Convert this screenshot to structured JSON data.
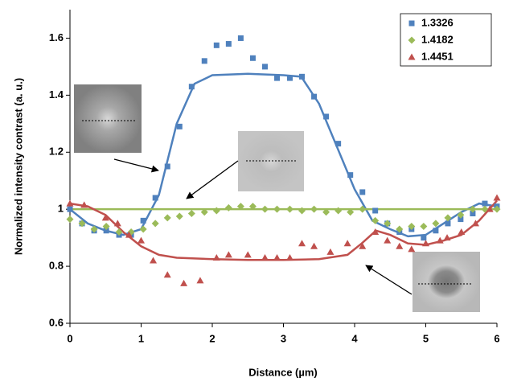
{
  "chart_data": {
    "type": "scatter",
    "x_label": "Distance (µm)",
    "y_label": "Normalized intensity contrast (a. u.)",
    "xlim": [
      0,
      6
    ],
    "xticks": [
      0,
      1,
      2,
      3,
      4,
      5,
      6
    ],
    "ylim": [
      0.6,
      1.7
    ],
    "yticks": [
      0.6,
      0.8,
      1,
      1.2,
      1.4,
      1.6
    ],
    "legend": "top-right",
    "series": [
      {
        "name": "1.3326",
        "color": "#4f81bd",
        "marker": "square",
        "x": [
          0,
          0.17,
          0.34,
          0.51,
          0.69,
          0.86,
          1.03,
          1.2,
          1.37,
          1.54,
          1.71,
          1.89,
          2.06,
          2.23,
          2.4,
          2.57,
          2.74,
          2.91,
          3.09,
          3.26,
          3.43,
          3.6,
          3.77,
          3.94,
          4.11,
          4.29,
          4.46,
          4.63,
          4.8,
          4.97,
          5.14,
          5.31,
          5.49,
          5.66,
          5.83,
          6.0
        ],
        "values": [
          1.0,
          0.95,
          0.925,
          0.925,
          0.91,
          0.91,
          0.96,
          1.04,
          1.15,
          1.29,
          1.43,
          1.52,
          1.575,
          1.58,
          1.6,
          1.53,
          1.5,
          1.46,
          1.46,
          1.465,
          1.395,
          1.325,
          1.23,
          1.12,
          1.06,
          0.995,
          0.95,
          0.92,
          0.93,
          0.9,
          0.925,
          0.95,
          0.965,
          0.985,
          1.02,
          1.01
        ]
      },
      {
        "name": "1.4182",
        "color": "#9bbb59",
        "marker": "diamond",
        "x": [
          0,
          0.17,
          0.34,
          0.51,
          0.69,
          0.86,
          1.03,
          1.2,
          1.37,
          1.54,
          1.71,
          1.89,
          2.06,
          2.23,
          2.4,
          2.57,
          2.74,
          2.91,
          3.09,
          3.26,
          3.43,
          3.6,
          3.77,
          3.94,
          4.11,
          4.29,
          4.46,
          4.63,
          4.8,
          4.97,
          5.14,
          5.31,
          5.49,
          5.66,
          5.83,
          6.0
        ],
        "values": [
          0.965,
          0.95,
          0.93,
          0.94,
          0.92,
          0.92,
          0.93,
          0.95,
          0.97,
          0.975,
          0.985,
          0.99,
          0.995,
          1.005,
          1.01,
          1.01,
          1.0,
          1.0,
          1.0,
          0.995,
          1.0,
          0.99,
          0.995,
          0.99,
          1.0,
          0.96,
          0.95,
          0.93,
          0.94,
          0.94,
          0.95,
          0.97,
          0.98,
          1.0,
          1.0,
          1.0
        ]
      },
      {
        "name": "1.4451",
        "color": "#c0504d",
        "marker": "triangle",
        "x": [
          0,
          0.2,
          0.5,
          0.67,
          0.83,
          1.0,
          1.17,
          1.37,
          1.6,
          1.83,
          2.06,
          2.23,
          2.5,
          2.74,
          2.91,
          3.09,
          3.26,
          3.43,
          3.66,
          3.9,
          4.11,
          4.29,
          4.46,
          4.63,
          4.8,
          5.0,
          5.2,
          5.3,
          5.5,
          5.7,
          5.9,
          6.0
        ],
        "values": [
          1.02,
          1.015,
          0.97,
          0.95,
          0.91,
          0.89,
          0.82,
          0.77,
          0.74,
          0.75,
          0.83,
          0.84,
          0.84,
          0.83,
          0.83,
          0.83,
          0.88,
          0.87,
          0.85,
          0.88,
          0.87,
          0.92,
          0.89,
          0.87,
          0.86,
          0.88,
          0.89,
          0.9,
          0.92,
          0.95,
          1.0,
          1.04
        ]
      }
    ],
    "fits": [
      {
        "color": "#4f81bd",
        "x": [
          0,
          0.25,
          0.5,
          0.75,
          1,
          1.25,
          1.5,
          1.75,
          2,
          2.5,
          3,
          3.25,
          3.5,
          3.75,
          4,
          4.25,
          4.5,
          4.75,
          5,
          5.25,
          5.5,
          5.75,
          6
        ],
        "values": [
          1.0,
          0.95,
          0.925,
          0.91,
          0.93,
          1.05,
          1.3,
          1.44,
          1.47,
          1.475,
          1.47,
          1.465,
          1.37,
          1.22,
          1.07,
          0.96,
          0.93,
          0.905,
          0.91,
          0.95,
          0.99,
          1.02,
          1.01
        ]
      },
      {
        "color": "#9bbb59",
        "x": [
          0,
          6
        ],
        "values": [
          1,
          1
        ]
      },
      {
        "color": "#c0504d",
        "x": [
          0,
          0.25,
          0.5,
          0.75,
          1,
          1.25,
          1.5,
          2,
          2.5,
          3,
          3.5,
          3.9,
          4.1,
          4.3,
          4.5,
          4.75,
          5,
          5.25,
          5.5,
          5.75,
          6
        ],
        "values": [
          1.02,
          1.01,
          0.98,
          0.92,
          0.87,
          0.84,
          0.83,
          0.825,
          0.822,
          0.822,
          0.825,
          0.84,
          0.88,
          0.925,
          0.91,
          0.88,
          0.875,
          0.89,
          0.91,
          0.96,
          1.03
        ]
      }
    ]
  }
}
